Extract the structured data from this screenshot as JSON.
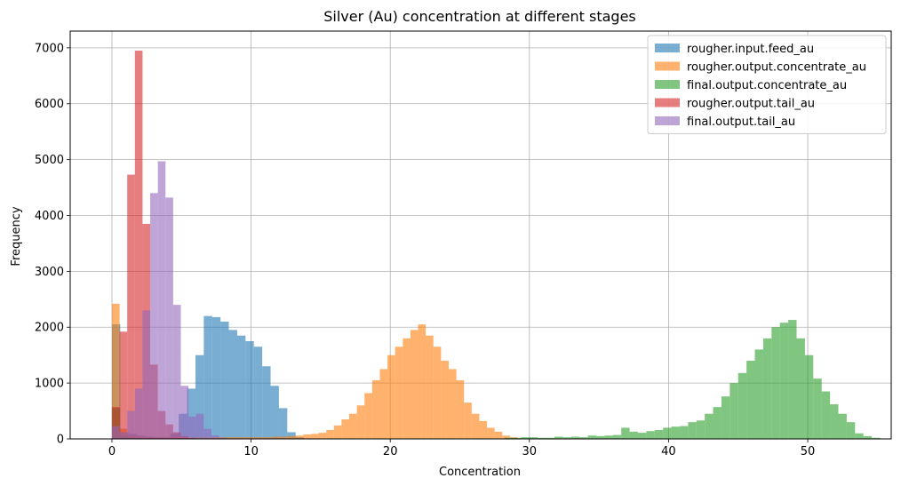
{
  "chart_data": {
    "type": "histogram",
    "title": "Silver (Au) concentration at different stages",
    "xlabel": "Concentration",
    "ylabel": "Frequency",
    "xlim": [
      -3,
      56
    ],
    "ylim": [
      0,
      7300
    ],
    "xticks": [
      0,
      10,
      20,
      30,
      40,
      50
    ],
    "yticks": [
      0,
      1000,
      2000,
      3000,
      4000,
      5000,
      6000,
      7000
    ],
    "grid": true,
    "legend_position": "top-right",
    "bar_opacity": 0.6,
    "series": [
      {
        "name": "rougher.input.feed_au",
        "color": "#1f77b4",
        "bin_width": 0.6,
        "bins": [
          [
            0.0,
            2050
          ],
          [
            0.6,
            120
          ],
          [
            1.2,
            90
          ],
          [
            1.8,
            60
          ],
          [
            2.4,
            40
          ],
          [
            3.0,
            30
          ],
          [
            3.6,
            30
          ],
          [
            4.2,
            100
          ],
          [
            4.8,
            450
          ],
          [
            5.4,
            900
          ],
          [
            6.0,
            1500
          ],
          [
            6.6,
            2200
          ],
          [
            7.2,
            2180
          ],
          [
            7.8,
            2100
          ],
          [
            8.4,
            1950
          ],
          [
            9.0,
            1850
          ],
          [
            9.6,
            1750
          ],
          [
            10.2,
            1650
          ],
          [
            10.8,
            1300
          ],
          [
            11.4,
            950
          ],
          [
            12.0,
            550
          ],
          [
            12.6,
            120
          ],
          [
            13.2,
            30
          ]
        ]
      },
      {
        "name": "rougher.output.concentrate_au",
        "color": "#ff7f0e",
        "bin_width": 0.55,
        "bins": [
          [
            0.0,
            2420
          ],
          [
            0.55,
            180
          ],
          [
            1.1,
            60
          ],
          [
            1.65,
            40
          ],
          [
            2.2,
            30
          ],
          [
            2.75,
            30
          ],
          [
            3.3,
            30
          ],
          [
            3.85,
            30
          ],
          [
            4.4,
            30
          ],
          [
            4.95,
            30
          ],
          [
            5.5,
            25
          ],
          [
            6.05,
            25
          ],
          [
            6.6,
            25
          ],
          [
            7.15,
            30
          ],
          [
            7.7,
            30
          ],
          [
            8.25,
            30
          ],
          [
            8.8,
            30
          ],
          [
            9.35,
            30
          ],
          [
            9.9,
            30
          ],
          [
            10.45,
            30
          ],
          [
            11.0,
            30
          ],
          [
            11.55,
            40
          ],
          [
            12.1,
            40
          ],
          [
            12.65,
            50
          ],
          [
            13.2,
            60
          ],
          [
            13.75,
            80
          ],
          [
            14.3,
            90
          ],
          [
            14.85,
            110
          ],
          [
            15.4,
            160
          ],
          [
            15.95,
            240
          ],
          [
            16.5,
            350
          ],
          [
            17.05,
            450
          ],
          [
            17.6,
            600
          ],
          [
            18.15,
            820
          ],
          [
            18.7,
            1050
          ],
          [
            19.25,
            1250
          ],
          [
            19.8,
            1500
          ],
          [
            20.35,
            1650
          ],
          [
            20.9,
            1800
          ],
          [
            21.45,
            1950
          ],
          [
            22.0,
            2050
          ],
          [
            22.55,
            1850
          ],
          [
            23.1,
            1650
          ],
          [
            23.65,
            1400
          ],
          [
            24.2,
            1250
          ],
          [
            24.75,
            1050
          ],
          [
            25.3,
            650
          ],
          [
            25.85,
            450
          ],
          [
            26.4,
            320
          ],
          [
            26.95,
            200
          ],
          [
            27.5,
            130
          ],
          [
            28.05,
            60
          ],
          [
            28.6,
            30
          ]
        ]
      },
      {
        "name": "final.output.concentrate_au",
        "color": "#2ca02c",
        "bin_width": 0.6,
        "bins": [
          [
            0.0,
            550
          ],
          [
            0.6,
            50
          ],
          [
            1.2,
            20
          ],
          [
            28.2,
            20
          ],
          [
            28.8,
            20
          ],
          [
            29.4,
            30
          ],
          [
            30.0,
            30
          ],
          [
            30.6,
            20
          ],
          [
            31.2,
            20
          ],
          [
            31.8,
            40
          ],
          [
            32.4,
            30
          ],
          [
            33.0,
            40
          ],
          [
            33.6,
            30
          ],
          [
            34.2,
            60
          ],
          [
            34.8,
            50
          ],
          [
            35.4,
            60
          ],
          [
            36.0,
            70
          ],
          [
            36.6,
            200
          ],
          [
            37.2,
            130
          ],
          [
            37.8,
            110
          ],
          [
            38.4,
            140
          ],
          [
            39.0,
            160
          ],
          [
            39.6,
            200
          ],
          [
            40.2,
            220
          ],
          [
            40.8,
            230
          ],
          [
            41.4,
            300
          ],
          [
            42.0,
            330
          ],
          [
            42.6,
            450
          ],
          [
            43.2,
            570
          ],
          [
            43.8,
            760
          ],
          [
            44.4,
            1000
          ],
          [
            45.0,
            1180
          ],
          [
            45.6,
            1400
          ],
          [
            46.2,
            1600
          ],
          [
            46.8,
            1800
          ],
          [
            47.4,
            2000
          ],
          [
            48.0,
            2080
          ],
          [
            48.6,
            2130
          ],
          [
            49.2,
            1800
          ],
          [
            49.8,
            1500
          ],
          [
            50.4,
            1080
          ],
          [
            51.0,
            850
          ],
          [
            51.6,
            620
          ],
          [
            52.2,
            450
          ],
          [
            52.8,
            300
          ],
          [
            53.4,
            100
          ],
          [
            54.0,
            50
          ],
          [
            54.6,
            20
          ]
        ]
      },
      {
        "name": "rougher.output.tail_au",
        "color": "#d62728",
        "bin_width": 0.55,
        "bins": [
          [
            0.0,
            570
          ],
          [
            0.55,
            1920
          ],
          [
            1.1,
            4730
          ],
          [
            1.65,
            6950
          ],
          [
            2.2,
            3850
          ],
          [
            2.75,
            1330
          ],
          [
            3.3,
            500
          ],
          [
            3.85,
            260
          ],
          [
            4.4,
            120
          ],
          [
            4.95,
            50
          ],
          [
            5.5,
            20
          ]
        ]
      },
      {
        "name": "final.output.tail_au",
        "color": "#9467bd",
        "bin_width": 0.55,
        "bins": [
          [
            0.0,
            230
          ],
          [
            0.55,
            120
          ],
          [
            1.1,
            500
          ],
          [
            1.65,
            900
          ],
          [
            2.2,
            2300
          ],
          [
            2.75,
            4400
          ],
          [
            3.3,
            4970
          ],
          [
            3.85,
            4320
          ],
          [
            4.4,
            2400
          ],
          [
            4.95,
            950
          ],
          [
            5.5,
            400
          ],
          [
            6.05,
            450
          ],
          [
            6.6,
            180
          ],
          [
            7.15,
            60
          ],
          [
            7.7,
            20
          ]
        ]
      }
    ]
  }
}
